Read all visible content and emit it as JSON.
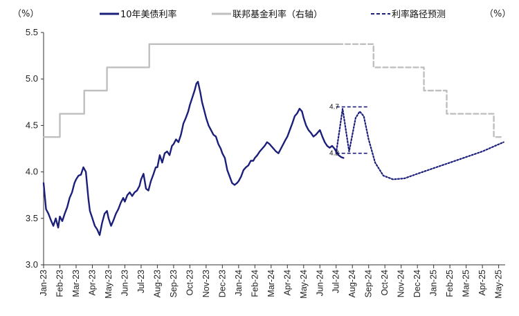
{
  "chart_data": {
    "type": "line",
    "unit_left": "（%）",
    "unit_right": "（%）",
    "y_ticks": [
      "5.5",
      "5.0",
      "4.5",
      "4.0",
      "3.5",
      "3.0"
    ],
    "ylim": [
      3.0,
      5.5
    ],
    "x_labels": [
      "Jan-23",
      "Feb-23",
      "Mar-23",
      "Apr-23",
      "May-23",
      "Jun-23",
      "Jul-23",
      "Aug-23",
      "Sep-23",
      "Oct-23",
      "Nov-23",
      "Dec-23",
      "Jan-24",
      "Feb-24",
      "Mar-24",
      "Apr-24",
      "May-24",
      "Jun-24",
      "Jul-24",
      "Aug-24",
      "Sep-24",
      "Oct-24",
      "Nov-24",
      "Dec-24",
      "Jan-25",
      "Feb-25",
      "Mar-25",
      "Apr-25",
      "May-25"
    ],
    "legend": [
      {
        "name": "10年美债利率",
        "style": "solid",
        "color": "#1b1f7a"
      },
      {
        "name": "联邦基金利率（右轴）",
        "style": "solid",
        "color": "#bfbfbf"
      },
      {
        "name": "利率路径预测",
        "style": "dashed",
        "color": "#1b1f7a"
      }
    ],
    "annotations": [
      {
        "text": "4.7",
        "x": 18.35,
        "y": 4.7
      },
      {
        "text": "4.2",
        "x": 18.35,
        "y": 4.2
      }
    ],
    "series": [
      {
        "name": "10年美债利率",
        "color": "#1b1f7a",
        "points": [
          [
            0,
            3.88
          ],
          [
            0.15,
            3.6
          ],
          [
            0.3,
            3.55
          ],
          [
            0.45,
            3.48
          ],
          [
            0.6,
            3.42
          ],
          [
            0.75,
            3.5
          ],
          [
            0.9,
            3.4
          ],
          [
            1.0,
            3.52
          ],
          [
            1.15,
            3.47
          ],
          [
            1.3,
            3.55
          ],
          [
            1.45,
            3.62
          ],
          [
            1.6,
            3.72
          ],
          [
            1.75,
            3.78
          ],
          [
            1.9,
            3.88
          ],
          [
            2.0,
            3.92
          ],
          [
            2.15,
            3.96
          ],
          [
            2.3,
            3.97
          ],
          [
            2.45,
            4.05
          ],
          [
            2.6,
            4.0
          ],
          [
            2.75,
            3.72
          ],
          [
            2.85,
            3.58
          ],
          [
            3.0,
            3.5
          ],
          [
            3.15,
            3.42
          ],
          [
            3.3,
            3.38
          ],
          [
            3.45,
            3.32
          ],
          [
            3.6,
            3.45
          ],
          [
            3.75,
            3.55
          ],
          [
            3.9,
            3.58
          ],
          [
            4.0,
            3.5
          ],
          [
            4.15,
            3.42
          ],
          [
            4.3,
            3.48
          ],
          [
            4.45,
            3.55
          ],
          [
            4.6,
            3.6
          ],
          [
            4.75,
            3.67
          ],
          [
            4.9,
            3.72
          ],
          [
            5.0,
            3.68
          ],
          [
            5.15,
            3.75
          ],
          [
            5.3,
            3.78
          ],
          [
            5.45,
            3.74
          ],
          [
            5.6,
            3.78
          ],
          [
            5.75,
            3.8
          ],
          [
            5.9,
            3.85
          ],
          [
            6.0,
            3.92
          ],
          [
            6.15,
            3.98
          ],
          [
            6.3,
            3.82
          ],
          [
            6.45,
            3.8
          ],
          [
            6.6,
            3.9
          ],
          [
            6.75,
            3.97
          ],
          [
            6.9,
            4.05
          ],
          [
            7.0,
            4.05
          ],
          [
            7.15,
            4.18
          ],
          [
            7.3,
            4.1
          ],
          [
            7.45,
            4.2
          ],
          [
            7.6,
            4.22
          ],
          [
            7.75,
            4.18
          ],
          [
            7.9,
            4.28
          ],
          [
            8.0,
            4.3
          ],
          [
            8.15,
            4.35
          ],
          [
            8.3,
            4.32
          ],
          [
            8.45,
            4.4
          ],
          [
            8.6,
            4.52
          ],
          [
            8.75,
            4.58
          ],
          [
            8.9,
            4.65
          ],
          [
            9.0,
            4.72
          ],
          [
            9.15,
            4.8
          ],
          [
            9.3,
            4.88
          ],
          [
            9.4,
            4.95
          ],
          [
            9.5,
            4.97
          ],
          [
            9.65,
            4.85
          ],
          [
            9.75,
            4.75
          ],
          [
            9.9,
            4.65
          ],
          [
            10.0,
            4.58
          ],
          [
            10.15,
            4.5
          ],
          [
            10.3,
            4.45
          ],
          [
            10.45,
            4.4
          ],
          [
            10.6,
            4.38
          ],
          [
            10.75,
            4.3
          ],
          [
            10.9,
            4.25
          ],
          [
            11.0,
            4.2
          ],
          [
            11.15,
            4.15
          ],
          [
            11.3,
            4.02
          ],
          [
            11.45,
            3.95
          ],
          [
            11.6,
            3.88
          ],
          [
            11.75,
            3.86
          ],
          [
            11.9,
            3.88
          ],
          [
            12.0,
            3.9
          ],
          [
            12.15,
            3.95
          ],
          [
            12.3,
            4.02
          ],
          [
            12.45,
            4.05
          ],
          [
            12.6,
            4.07
          ],
          [
            12.75,
            4.12
          ],
          [
            12.9,
            4.12
          ],
          [
            13.0,
            4.15
          ],
          [
            13.15,
            4.18
          ],
          [
            13.3,
            4.22
          ],
          [
            13.45,
            4.25
          ],
          [
            13.6,
            4.28
          ],
          [
            13.75,
            4.32
          ],
          [
            13.9,
            4.3
          ],
          [
            14.0,
            4.28
          ],
          [
            14.15,
            4.25
          ],
          [
            14.3,
            4.22
          ],
          [
            14.45,
            4.2
          ],
          [
            14.6,
            4.25
          ],
          [
            14.75,
            4.3
          ],
          [
            14.9,
            4.35
          ],
          [
            15.0,
            4.38
          ],
          [
            15.15,
            4.45
          ],
          [
            15.3,
            4.52
          ],
          [
            15.45,
            4.6
          ],
          [
            15.6,
            4.63
          ],
          [
            15.75,
            4.68
          ],
          [
            15.9,
            4.65
          ],
          [
            16.0,
            4.58
          ],
          [
            16.15,
            4.5
          ],
          [
            16.3,
            4.45
          ],
          [
            16.45,
            4.42
          ],
          [
            16.6,
            4.38
          ],
          [
            16.75,
            4.4
          ],
          [
            16.9,
            4.43
          ],
          [
            17.0,
            4.45
          ],
          [
            17.15,
            4.38
          ],
          [
            17.3,
            4.32
          ],
          [
            17.45,
            4.28
          ],
          [
            17.6,
            4.26
          ],
          [
            17.75,
            4.28
          ],
          [
            17.9,
            4.25
          ],
          [
            18.0,
            4.22
          ],
          [
            18.15,
            4.18
          ],
          [
            18.3,
            4.16
          ],
          [
            18.45,
            4.15
          ]
        ]
      },
      {
        "name": "联邦基金利率（右轴）",
        "color": "#bfbfbf",
        "points": [
          [
            0,
            4.375
          ],
          [
            1.0,
            4.375
          ],
          [
            1.0,
            4.625
          ],
          [
            2.5,
            4.625
          ],
          [
            2.5,
            4.875
          ],
          [
            3.9,
            4.875
          ],
          [
            3.9,
            5.125
          ],
          [
            6.5,
            5.125
          ],
          [
            6.5,
            5.375
          ],
          [
            18.1,
            5.375
          ]
        ]
      },
      {
        "name": "联邦基金利率预测",
        "color": "#bfbfbf",
        "style": "dashed",
        "points": [
          [
            18.1,
            5.375
          ],
          [
            20.3,
            5.375
          ],
          [
            20.3,
            5.125
          ],
          [
            23.4,
            5.125
          ],
          [
            23.4,
            4.875
          ],
          [
            24.8,
            4.875
          ],
          [
            24.8,
            4.625
          ],
          [
            27.7,
            4.625
          ],
          [
            27.7,
            4.375
          ],
          [
            28.3,
            4.375
          ]
        ]
      },
      {
        "name": "利率路径预测",
        "color": "#1b1f7a",
        "style": "dotted",
        "points": [
          [
            18.0,
            4.2
          ],
          [
            18.25,
            4.5
          ],
          [
            18.4,
            4.68
          ],
          [
            18.6,
            4.45
          ],
          [
            18.8,
            4.22
          ],
          [
            19.0,
            4.4
          ],
          [
            19.2,
            4.58
          ],
          [
            19.45,
            4.65
          ],
          [
            19.7,
            4.6
          ],
          [
            20.0,
            4.35
          ],
          [
            20.4,
            4.1
          ],
          [
            20.9,
            3.96
          ],
          [
            21.5,
            3.92
          ],
          [
            22.2,
            3.93
          ],
          [
            23.0,
            3.98
          ],
          [
            24.0,
            4.04
          ],
          [
            25.0,
            4.1
          ],
          [
            26.0,
            4.16
          ],
          [
            27.0,
            4.22
          ],
          [
            28.3,
            4.32
          ]
        ]
      }
    ],
    "guide_lines": [
      {
        "y": 4.7,
        "x": [
          18.0,
          20.0
        ],
        "color": "#1b1f7a",
        "style": "dashed"
      },
      {
        "y": 4.2,
        "x": [
          18.0,
          20.0
        ],
        "color": "#1b1f7a",
        "style": "dashed"
      }
    ]
  }
}
